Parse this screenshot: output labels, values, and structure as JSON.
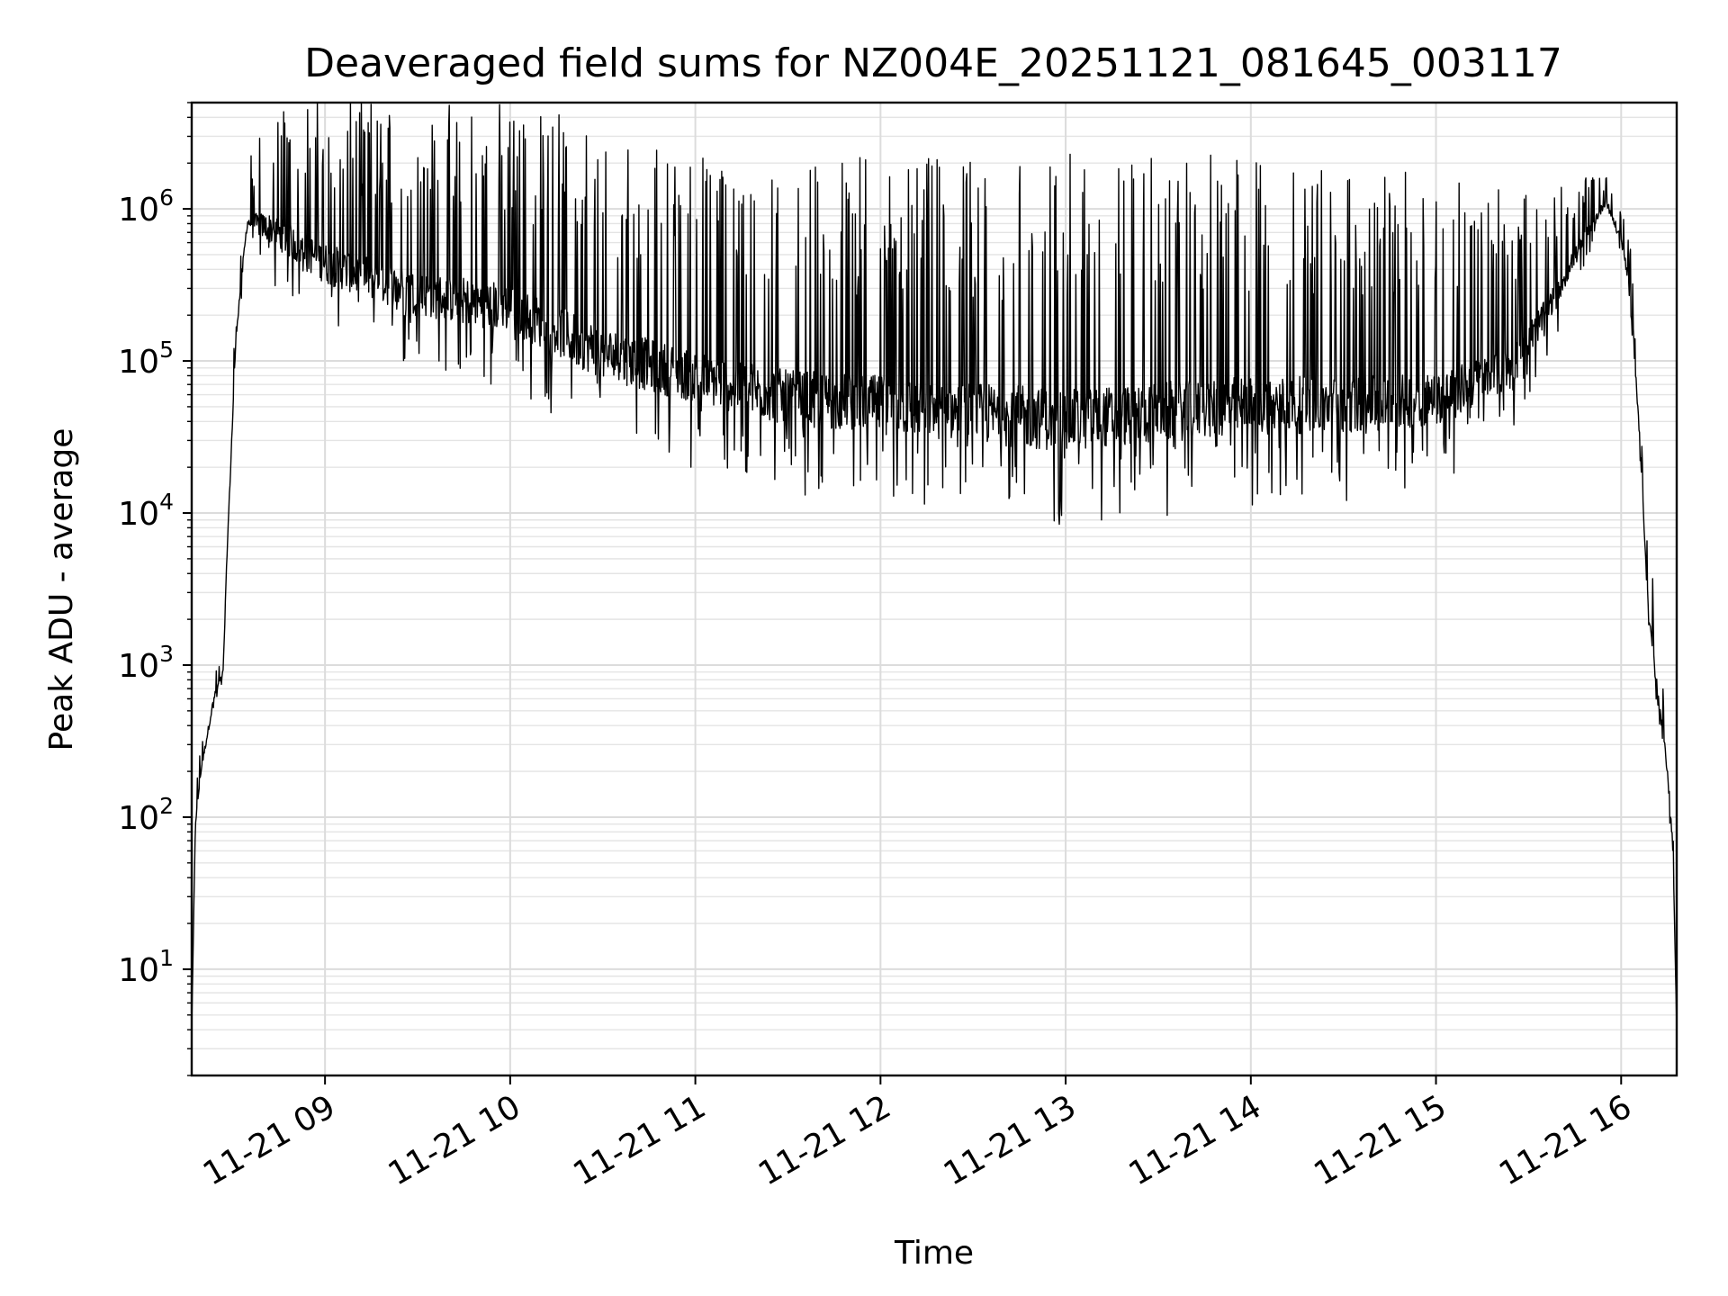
{
  "chart_data": {
    "type": "line",
    "title": "Deaveraged field sums for NZ004E_20251121_081645_003117",
    "xlabel": "Time",
    "ylabel": "Peak ADU - average",
    "yscale": "log",
    "ylim": [
      2,
      5000000
    ],
    "xlim_hours": [
      8.28,
      16.3
    ],
    "grid": true,
    "x_tick_hours": [
      9,
      10,
      11,
      12,
      13,
      14,
      15,
      16
    ],
    "x_tick_labels": [
      "11-21 09",
      "11-21 10",
      "11-21 11",
      "11-21 12",
      "11-21 13",
      "11-21 14",
      "11-21 15",
      "11-21 16"
    ],
    "y_ticks": [
      {
        "value": 10,
        "base": "10",
        "exp": "1"
      },
      {
        "value": 100,
        "base": "10",
        "exp": "2"
      },
      {
        "value": 1000,
        "base": "10",
        "exp": "3"
      },
      {
        "value": 10000,
        "base": "10",
        "exp": "4"
      },
      {
        "value": 100000,
        "base": "10",
        "exp": "5"
      },
      {
        "value": 1000000,
        "base": "10",
        "exp": "6"
      }
    ],
    "series": [
      {
        "name": "Peak ADU - average",
        "color": "#000000",
        "envelope": [
          {
            "t": 8.28,
            "base": 4,
            "amp": 1
          },
          {
            "t": 8.3,
            "base": 90,
            "amp": 1.5
          },
          {
            "t": 8.33,
            "base": 200,
            "amp": 1.5
          },
          {
            "t": 8.4,
            "base": 600,
            "amp": 1.5
          },
          {
            "t": 8.45,
            "base": 900,
            "amp": 1.3
          },
          {
            "t": 8.47,
            "base": 5000,
            "amp": 1.5
          },
          {
            "t": 8.52,
            "base": 150000,
            "amp": 2
          },
          {
            "t": 8.58,
            "base": 800000,
            "amp": 2
          },
          {
            "t": 8.7,
            "base": 700000,
            "amp": 6
          },
          {
            "t": 9.0,
            "base": 400000,
            "amp": 12
          },
          {
            "t": 9.5,
            "base": 250000,
            "amp": 15
          },
          {
            "t": 10.0,
            "base": 200000,
            "amp": 20
          },
          {
            "t": 10.5,
            "base": 100000,
            "amp": 25
          },
          {
            "t": 11.0,
            "base": 70000,
            "amp": 25
          },
          {
            "t": 11.5,
            "base": 50000,
            "amp": 30
          },
          {
            "t": 12.0,
            "base": 45000,
            "amp": 35
          },
          {
            "t": 12.5,
            "base": 40000,
            "amp": 40
          },
          {
            "t": 13.0,
            "base": 35000,
            "amp": 45
          },
          {
            "t": 13.5,
            "base": 40000,
            "amp": 40
          },
          {
            "t": 14.0,
            "base": 45000,
            "amp": 35
          },
          {
            "t": 14.5,
            "base": 45000,
            "amp": 30
          },
          {
            "t": 15.0,
            "base": 50000,
            "amp": 25
          },
          {
            "t": 15.4,
            "base": 80000,
            "amp": 12
          },
          {
            "t": 15.6,
            "base": 200000,
            "amp": 5
          },
          {
            "t": 15.85,
            "base": 800000,
            "amp": 2
          },
          {
            "t": 15.92,
            "base": 1100000,
            "amp": 1.5
          },
          {
            "t": 16.0,
            "base": 600000,
            "amp": 2
          },
          {
            "t": 16.05,
            "base": 300000,
            "amp": 2
          },
          {
            "t": 16.1,
            "base": 30000,
            "amp": 2
          },
          {
            "t": 16.15,
            "base": 2000,
            "amp": 2
          },
          {
            "t": 16.2,
            "base": 600,
            "amp": 2
          },
          {
            "t": 16.25,
            "base": 200,
            "amp": 2
          },
          {
            "t": 16.28,
            "base": 60,
            "amp": 2
          },
          {
            "t": 16.3,
            "base": 4,
            "amp": 1
          }
        ],
        "peaks": [
          {
            "t": 8.92,
            "value": 2500000
          },
          {
            "t": 8.72,
            "value": 2000000
          },
          {
            "t": 15.92,
            "value": 1600000
          },
          {
            "t": 16.17,
            "value": 3700
          }
        ]
      }
    ]
  }
}
